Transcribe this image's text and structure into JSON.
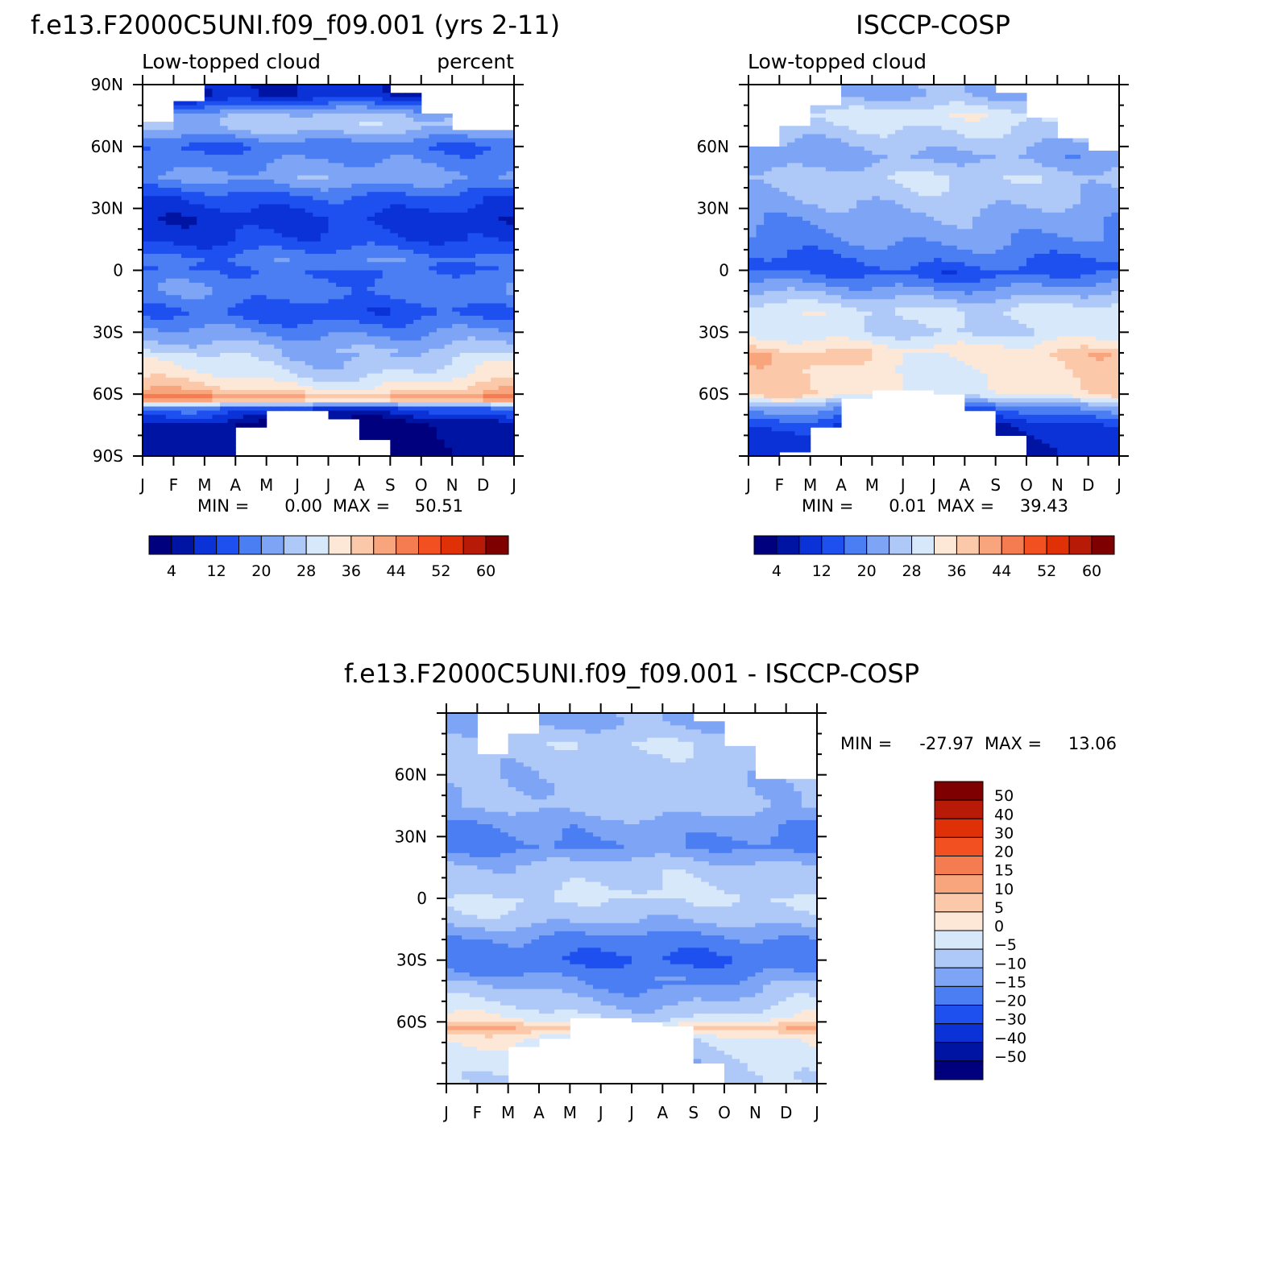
{
  "page": {
    "left_title": "f.e13.F2000C5UNI.f09_f09.001 (yrs 2-11)",
    "right_title": "ISCCP-COSP",
    "diff_title": "f.e13.F2000C5UNI.f09_f09.001 - ISCCP-COSP"
  },
  "colors": {
    "seq_palette": [
      "#00007f",
      "#0014a3",
      "#0a32d6",
      "#1e50f0",
      "#4a7ef2",
      "#7ea5f5",
      "#aec8f8",
      "#d8e8fb",
      "#fde8d8",
      "#fbc8aa",
      "#f8a47c",
      "#f57c50",
      "#f25020",
      "#e03008",
      "#b81a08",
      "#7f0000"
    ],
    "missing": "#ffffff"
  },
  "chart_data": [
    {
      "type": "heatmap",
      "id": "model",
      "title": "f.e13.F2000C5UNI.f09_f09.001 (yrs 2-11)",
      "left_label": "Low-topped cloud",
      "right_label": "percent",
      "x_ticks": [
        "J",
        "F",
        "M",
        "A",
        "M",
        "J",
        "J",
        "A",
        "S",
        "O",
        "N",
        "D",
        "J"
      ],
      "y_ticks": [
        "90N",
        "60N",
        "30N",
        "0",
        "30S",
        "60S",
        "90S"
      ],
      "y_tick_values": [
        90,
        60,
        30,
        0,
        -30,
        -60,
        -90
      ],
      "ylim": [
        -90,
        90
      ],
      "xlim": [
        0,
        12
      ],
      "min_label": "MIN =",
      "min_value": "0.00",
      "max_label": "MAX =",
      "max_value": "50.51",
      "colorbar_labels": [
        "4",
        "12",
        "20",
        "28",
        "36",
        "44",
        "52",
        "60"
      ],
      "colorbar_levels": [
        0,
        4,
        8,
        12,
        16,
        20,
        24,
        28,
        32,
        36,
        40,
        44,
        48,
        52,
        56,
        60,
        64
      ],
      "lat_profile": [
        {
          "lat": 85,
          "value": 8
        },
        {
          "lat": 75,
          "value": 24
        },
        {
          "lat": 70,
          "value": 26
        },
        {
          "lat": 60,
          "value": 16
        },
        {
          "lat": 45,
          "value": 22
        },
        {
          "lat": 35,
          "value": 14
        },
        {
          "lat": 25,
          "value": 10
        },
        {
          "lat": 15,
          "value": 12
        },
        {
          "lat": 5,
          "value": 18
        },
        {
          "lat": 0,
          "value": 16
        },
        {
          "lat": -10,
          "value": 19
        },
        {
          "lat": -20,
          "value": 14
        },
        {
          "lat": -30,
          "value": 20
        },
        {
          "lat": -40,
          "value": 26
        },
        {
          "lat": -50,
          "value": 30
        },
        {
          "lat": -58,
          "value": 36
        },
        {
          "lat": -62,
          "value": 44
        },
        {
          "lat": -67,
          "value": 14
        },
        {
          "lat": -75,
          "value": 3
        },
        {
          "lat": -85,
          "value": 2
        }
      ],
      "missing_north": [
        {
          "month": 0,
          "lat": 72
        },
        {
          "month": 1,
          "lat": 82
        },
        {
          "month": 2,
          "lat": 90
        },
        {
          "month": 8,
          "lat": 86
        },
        {
          "month": 9,
          "lat": 76
        },
        {
          "month": 10,
          "lat": 68
        },
        {
          "month": 11,
          "lat": 68
        }
      ],
      "missing_south": [
        {
          "month": 2,
          "lat": -90
        },
        {
          "month": 3,
          "lat": -75
        },
        {
          "month": 4,
          "lat": -68
        },
        {
          "month": 5,
          "lat": -68
        },
        {
          "month": 6,
          "lat": -71
        },
        {
          "month": 7,
          "lat": -81
        },
        {
          "month": 8,
          "lat": -90
        }
      ]
    },
    {
      "type": "heatmap",
      "id": "obs",
      "title": "ISCCP-COSP",
      "left_label": "Low-topped cloud",
      "x_ticks": [
        "J",
        "F",
        "M",
        "A",
        "M",
        "J",
        "J",
        "A",
        "S",
        "O",
        "N",
        "D",
        "J"
      ],
      "y_ticks": [
        "60N",
        "30N",
        "0",
        "30S",
        "60S"
      ],
      "y_tick_values": [
        60,
        30,
        0,
        -30,
        -60
      ],
      "ylim": [
        -90,
        90
      ],
      "xlim": [
        0,
        12
      ],
      "min_label": "MIN =",
      "min_value": "0.01",
      "max_label": "MAX =",
      "max_value": "39.43",
      "colorbar_labels": [
        "4",
        "12",
        "20",
        "28",
        "36",
        "44",
        "52",
        "60"
      ],
      "colorbar_levels": [
        0,
        4,
        8,
        12,
        16,
        20,
        24,
        28,
        32,
        36,
        40,
        44,
        48,
        52,
        56,
        60,
        64
      ],
      "lat_profile": [
        {
          "lat": 85,
          "value": 22
        },
        {
          "lat": 75,
          "value": 30
        },
        {
          "lat": 65,
          "value": 26
        },
        {
          "lat": 55,
          "value": 22
        },
        {
          "lat": 45,
          "value": 27
        },
        {
          "lat": 35,
          "value": 25
        },
        {
          "lat": 25,
          "value": 22
        },
        {
          "lat": 15,
          "value": 20
        },
        {
          "lat": 5,
          "value": 16
        },
        {
          "lat": 0,
          "value": 14
        },
        {
          "lat": -10,
          "value": 22
        },
        {
          "lat": -20,
          "value": 30
        },
        {
          "lat": -30,
          "value": 28
        },
        {
          "lat": -40,
          "value": 36
        },
        {
          "lat": -50,
          "value": 34
        },
        {
          "lat": -60,
          "value": 34
        },
        {
          "lat": -66,
          "value": 20
        },
        {
          "lat": -75,
          "value": 10
        },
        {
          "lat": -85,
          "value": 6
        }
      ],
      "missing_north": [
        {
          "month": 0,
          "lat": 60
        },
        {
          "month": 1,
          "lat": 70
        },
        {
          "month": 2,
          "lat": 80
        },
        {
          "month": 3,
          "lat": 90
        },
        {
          "month": 8,
          "lat": 86
        },
        {
          "month": 9,
          "lat": 74
        },
        {
          "month": 10,
          "lat": 64
        },
        {
          "month": 11,
          "lat": 58
        }
      ],
      "missing_south": [
        {
          "month": 1,
          "lat": -88
        },
        {
          "month": 2,
          "lat": -75
        },
        {
          "month": 3,
          "lat": -62
        },
        {
          "month": 4,
          "lat": -58
        },
        {
          "month": 5,
          "lat": -58
        },
        {
          "month": 6,
          "lat": -60
        },
        {
          "month": 7,
          "lat": -67
        },
        {
          "month": 8,
          "lat": -79
        },
        {
          "month": 9,
          "lat": -90
        }
      ]
    },
    {
      "type": "heatmap",
      "id": "diff",
      "title": "f.e13.F2000C5UNI.f09_f09.001 - ISCCP-COSP",
      "x_ticks": [
        "J",
        "F",
        "M",
        "A",
        "M",
        "J",
        "J",
        "A",
        "S",
        "O",
        "N",
        "D",
        "J"
      ],
      "y_ticks": [
        "60N",
        "30N",
        "0",
        "30S",
        "60S"
      ],
      "y_tick_values": [
        60,
        30,
        0,
        -30,
        -60
      ],
      "ylim": [
        -90,
        90
      ],
      "xlim": [
        0,
        12
      ],
      "min_label": "MIN =",
      "min_value": "-27.97",
      "max_label": "MAX =",
      "max_value": "13.06",
      "colorbar_labels": [
        "50",
        "40",
        "30",
        "20",
        "15",
        "10",
        "5",
        "0",
        "-5",
        "-10",
        "-15",
        "-20",
        "-30",
        "-40",
        "-50"
      ],
      "colorbar_levels": [
        -60,
        -50,
        -40,
        -30,
        -20,
        -15,
        -10,
        -5,
        0,
        5,
        10,
        15,
        20,
        30,
        40,
        50,
        60
      ],
      "lat_profile": [
        {
          "lat": 85,
          "value": -12
        },
        {
          "lat": 75,
          "value": -6
        },
        {
          "lat": 65,
          "value": -8
        },
        {
          "lat": 55,
          "value": -9
        },
        {
          "lat": 45,
          "value": -8
        },
        {
          "lat": 35,
          "value": -14
        },
        {
          "lat": 25,
          "value": -16
        },
        {
          "lat": 15,
          "value": -8
        },
        {
          "lat": 5,
          "value": -6
        },
        {
          "lat": 0,
          "value": -4
        },
        {
          "lat": -10,
          "value": -8
        },
        {
          "lat": -20,
          "value": -16
        },
        {
          "lat": -30,
          "value": -20
        },
        {
          "lat": -40,
          "value": -14
        },
        {
          "lat": -50,
          "value": -8
        },
        {
          "lat": -58,
          "value": -3
        },
        {
          "lat": -63,
          "value": 8
        },
        {
          "lat": -68,
          "value": -2
        },
        {
          "lat": -78,
          "value": -6
        },
        {
          "lat": -86,
          "value": -8
        }
      ],
      "missing_north": [
        {
          "month": 0,
          "lat": 92
        },
        {
          "month": 1,
          "lat": 70
        },
        {
          "month": 2,
          "lat": 80
        },
        {
          "month": 3,
          "lat": 90
        },
        {
          "month": 8,
          "lat": 86
        },
        {
          "month": 9,
          "lat": 74
        },
        {
          "month": 10,
          "lat": 58
        },
        {
          "month": 11,
          "lat": 58
        }
      ],
      "missing_south": [
        {
          "month": 1,
          "lat": -90
        },
        {
          "month": 2,
          "lat": -72
        },
        {
          "month": 3,
          "lat": -68
        },
        {
          "month": 4,
          "lat": -58
        },
        {
          "month": 5,
          "lat": -58
        },
        {
          "month": 6,
          "lat": -60
        },
        {
          "month": 7,
          "lat": -62
        },
        {
          "month": 8,
          "lat": -80
        },
        {
          "month": 9,
          "lat": -90
        }
      ]
    }
  ]
}
